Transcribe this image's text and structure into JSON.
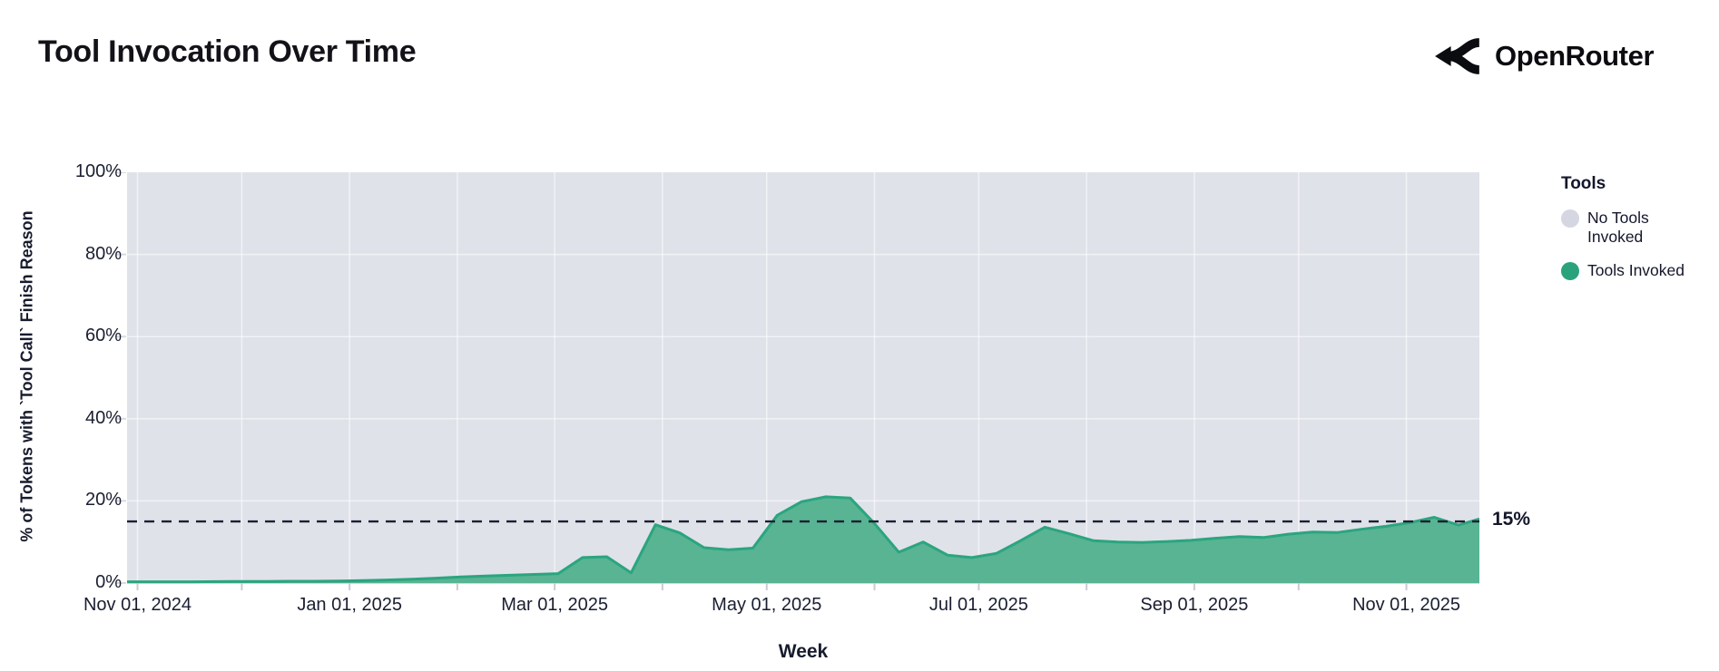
{
  "header": {
    "title": "Tool Invocation Over Time",
    "brand": "OpenRouter"
  },
  "chart_data": {
    "type": "area",
    "stacked_percent": true,
    "title": "Tool Invocation Over Time",
    "xlabel": "Week",
    "ylabel": "% of Tokens with `Tool Call` Finish Reason",
    "ylim": [
      0,
      100
    ],
    "grid": true,
    "y_ticks": [
      "0%",
      "20%",
      "40%",
      "60%",
      "80%",
      "100%"
    ],
    "x_ticks": [
      {
        "label": "Nov 01, 2024",
        "date": "2024-11-01"
      },
      {
        "label": "Jan 01, 2025",
        "date": "2025-01-01"
      },
      {
        "label": "Mar 01, 2025",
        "date": "2025-03-01"
      },
      {
        "label": "May 01, 2025",
        "date": "2025-05-01"
      },
      {
        "label": "Jul 01, 2025",
        "date": "2025-07-01"
      },
      {
        "label": "Sep 01, 2025",
        "date": "2025-09-01"
      },
      {
        "label": "Nov 01, 2025",
        "date": "2025-11-01"
      }
    ],
    "legend": {
      "title": "Tools",
      "position": "right",
      "items": [
        {
          "label": "No Tools Invoked",
          "color": "#d4d6e1"
        },
        {
          "label": "Tools Invoked",
          "color": "#2aa37c"
        }
      ]
    },
    "reference_line": {
      "value": 15,
      "label": "15%"
    },
    "colors": {
      "no_tools_fill": "#e0e2ea",
      "tools_fill": "#58b493",
      "tools_stroke": "#2ba57e",
      "grid": "rgba(255,255,255,0.55)",
      "tick": "#c9ccd6",
      "reference": "#1b1f30"
    },
    "series": [
      {
        "name": "Tools Invoked",
        "unit": "%",
        "points": [
          [
            "2024-10-29",
            0.3
          ],
          [
            "2024-11-03",
            0.3
          ],
          [
            "2024-11-10",
            0.3
          ],
          [
            "2024-11-17",
            0.3
          ],
          [
            "2024-11-24",
            0.35
          ],
          [
            "2024-12-01",
            0.4
          ],
          [
            "2024-12-08",
            0.4
          ],
          [
            "2024-12-15",
            0.45
          ],
          [
            "2024-12-22",
            0.45
          ],
          [
            "2024-12-29",
            0.5
          ],
          [
            "2025-01-05",
            0.6
          ],
          [
            "2025-01-12",
            0.75
          ],
          [
            "2025-01-19",
            0.95
          ],
          [
            "2025-01-26",
            1.2
          ],
          [
            "2025-02-02",
            1.5
          ],
          [
            "2025-02-09",
            1.7
          ],
          [
            "2025-02-16",
            1.9
          ],
          [
            "2025-02-23",
            2.1
          ],
          [
            "2025-03-02",
            2.3
          ],
          [
            "2025-03-09",
            6.2
          ],
          [
            "2025-03-16",
            6.4
          ],
          [
            "2025-03-23",
            2.5
          ],
          [
            "2025-03-30",
            14.2
          ],
          [
            "2025-04-06",
            12.2
          ],
          [
            "2025-04-13",
            8.6
          ],
          [
            "2025-04-20",
            8.1
          ],
          [
            "2025-04-27",
            8.5
          ],
          [
            "2025-05-04",
            16.5
          ],
          [
            "2025-05-11",
            19.8
          ],
          [
            "2025-05-18",
            21.0
          ],
          [
            "2025-05-25",
            20.7
          ],
          [
            "2025-06-01",
            14.5
          ],
          [
            "2025-06-08",
            7.5
          ],
          [
            "2025-06-15",
            10.0
          ],
          [
            "2025-06-22",
            6.8
          ],
          [
            "2025-06-29",
            6.2
          ],
          [
            "2025-07-06",
            7.2
          ],
          [
            "2025-07-13",
            10.3
          ],
          [
            "2025-07-20",
            13.6
          ],
          [
            "2025-07-27",
            12.0
          ],
          [
            "2025-08-03",
            10.3
          ],
          [
            "2025-08-10",
            10.0
          ],
          [
            "2025-08-17",
            9.9
          ],
          [
            "2025-08-24",
            10.1
          ],
          [
            "2025-08-31",
            10.4
          ],
          [
            "2025-09-07",
            10.9
          ],
          [
            "2025-09-14",
            11.3
          ],
          [
            "2025-09-21",
            11.1
          ],
          [
            "2025-09-28",
            11.9
          ],
          [
            "2025-10-05",
            12.4
          ],
          [
            "2025-10-12",
            12.3
          ],
          [
            "2025-10-19",
            13.1
          ],
          [
            "2025-10-26",
            13.8
          ],
          [
            "2025-11-02",
            14.7
          ],
          [
            "2025-11-09",
            16.0
          ],
          [
            "2025-11-16",
            14.1
          ],
          [
            "2025-11-22",
            15.6
          ]
        ]
      }
    ]
  }
}
